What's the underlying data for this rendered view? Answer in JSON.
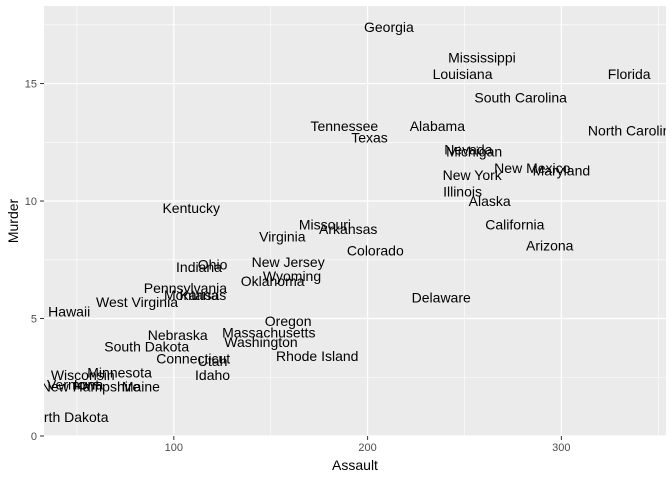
{
  "chart_data": {
    "type": "scatter",
    "xlabel": "Assault",
    "ylabel": "Murder",
    "xlim": [
      33,
      354
    ],
    "ylim": [
      0,
      18.3
    ],
    "x_ticks": [
      100,
      200,
      300
    ],
    "y_ticks": [
      0,
      5,
      10,
      15
    ],
    "grid": true,
    "panel_color": "#ebebeb",
    "grid_color": "#ffffff",
    "points": [
      {
        "label": "Alabama",
        "x": 236,
        "y": 13.2
      },
      {
        "label": "Alaska",
        "x": 263,
        "y": 10.0
      },
      {
        "label": "Arizona",
        "x": 294,
        "y": 8.1
      },
      {
        "label": "Arkansas",
        "x": 190,
        "y": 8.8
      },
      {
        "label": "California",
        "x": 276,
        "y": 9.0
      },
      {
        "label": "Colorado",
        "x": 204,
        "y": 7.9
      },
      {
        "label": "Connecticut",
        "x": 110,
        "y": 3.3
      },
      {
        "label": "Delaware",
        "x": 238,
        "y": 5.9
      },
      {
        "label": "Florida",
        "x": 335,
        "y": 15.4
      },
      {
        "label": "Georgia",
        "x": 211,
        "y": 17.4
      },
      {
        "label": "Hawaii",
        "x": 46,
        "y": 5.3
      },
      {
        "label": "Idaho",
        "x": 120,
        "y": 2.6
      },
      {
        "label": "Illinois",
        "x": 249,
        "y": 10.4
      },
      {
        "label": "Indiana",
        "x": 113,
        "y": 7.2
      },
      {
        "label": "Iowa",
        "x": 56,
        "y": 2.2
      },
      {
        "label": "Kansas",
        "x": 115,
        "y": 6.0
      },
      {
        "label": "Kentucky",
        "x": 109,
        "y": 9.7
      },
      {
        "label": "Louisiana",
        "x": 249,
        "y": 15.4
      },
      {
        "label": "Maine",
        "x": 83,
        "y": 2.1
      },
      {
        "label": "Maryland",
        "x": 300,
        "y": 11.3
      },
      {
        "label": "Massachusetts",
        "x": 149,
        "y": 4.4
      },
      {
        "label": "Michigan",
        "x": 255,
        "y": 12.1
      },
      {
        "label": "Minnesota",
        "x": 72,
        "y": 2.7
      },
      {
        "label": "Mississippi",
        "x": 259,
        "y": 16.1
      },
      {
        "label": "Missouri",
        "x": 178,
        "y": 9.0
      },
      {
        "label": "Montana",
        "x": 109,
        "y": 6.0
      },
      {
        "label": "Nebraska",
        "x": 102,
        "y": 4.3
      },
      {
        "label": "Nevada",
        "x": 252,
        "y": 12.2
      },
      {
        "label": "New Hampshire",
        "x": 57,
        "y": 2.1
      },
      {
        "label": "New Jersey",
        "x": 159,
        "y": 7.4
      },
      {
        "label": "New Mexico",
        "x": 285,
        "y": 11.4
      },
      {
        "label": "New York",
        "x": 254,
        "y": 11.1
      },
      {
        "label": "North Carolina",
        "x": 337,
        "y": 13.0
      },
      {
        "label": "North Dakota",
        "x": 45,
        "y": 0.8
      },
      {
        "label": "Ohio",
        "x": 120,
        "y": 7.3
      },
      {
        "label": "Oklahoma",
        "x": 151,
        "y": 6.6
      },
      {
        "label": "Oregon",
        "x": 159,
        "y": 4.9
      },
      {
        "label": "Pennsylvania",
        "x": 106,
        "y": 6.3
      },
      {
        "label": "Rhode Island",
        "x": 174,
        "y": 3.4
      },
      {
        "label": "South Carolina",
        "x": 279,
        "y": 14.4
      },
      {
        "label": "South Dakota",
        "x": 86,
        "y": 3.8
      },
      {
        "label": "Tennessee",
        "x": 188,
        "y": 13.2
      },
      {
        "label": "Texas",
        "x": 201,
        "y": 12.7
      },
      {
        "label": "Utah",
        "x": 120,
        "y": 3.2
      },
      {
        "label": "Vermont",
        "x": 48,
        "y": 2.2
      },
      {
        "label": "Virginia",
        "x": 156,
        "y": 8.5
      },
      {
        "label": "Washington",
        "x": 145,
        "y": 4.0
      },
      {
        "label": "West Virginia",
        "x": 81,
        "y": 5.7
      },
      {
        "label": "Wisconsin",
        "x": 53,
        "y": 2.6
      },
      {
        "label": "Wyoming",
        "x": 161,
        "y": 6.8
      }
    ]
  }
}
